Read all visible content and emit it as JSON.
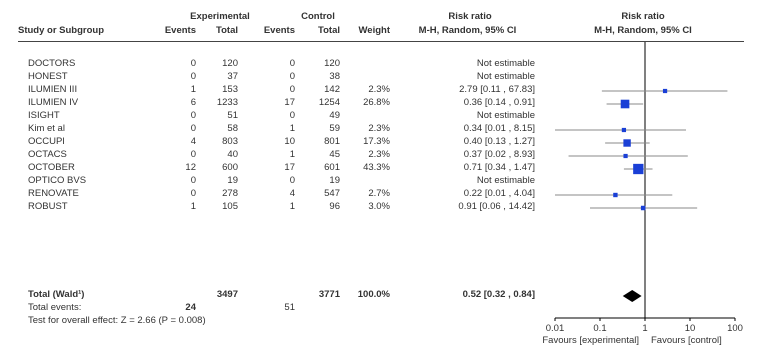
{
  "headers": {
    "study": "Study or Subgroup",
    "experimental": "Experimental",
    "control": "Control",
    "events": "Events",
    "total": "Total",
    "weight": "Weight",
    "risk_ratio": "Risk ratio",
    "method": "M-H, Random, 95% CI",
    "plot_title": "Risk ratio",
    "plot_method": "M-H, Random, 95% CI"
  },
  "studies": [
    {
      "name": "DOCTORS",
      "exp_events": "0",
      "exp_total": "120",
      "ctl_events": "0",
      "ctl_total": "120",
      "weight": "",
      "rr_text": "Not estimable"
    },
    {
      "name": "HONEST",
      "exp_events": "0",
      "exp_total": "37",
      "ctl_events": "0",
      "ctl_total": "38",
      "weight": "",
      "rr_text": "Not estimable"
    },
    {
      "name": "ILUMIEN III",
      "exp_events": "1",
      "exp_total": "153",
      "ctl_events": "0",
      "ctl_total": "142",
      "weight": "2.3%",
      "rr_text": "2.79 [0.11 , 67.83]"
    },
    {
      "name": "ILUMIEN IV",
      "exp_events": "6",
      "exp_total": "1233",
      "ctl_events": "17",
      "ctl_total": "1254",
      "weight": "26.8%",
      "rr_text": "0.36 [0.14 , 0.91]"
    },
    {
      "name": "ISIGHT",
      "exp_events": "0",
      "exp_total": "51",
      "ctl_events": "0",
      "ctl_total": "49",
      "weight": "",
      "rr_text": "Not estimable"
    },
    {
      "name": "Kim et al",
      "exp_events": "0",
      "exp_total": "58",
      "ctl_events": "1",
      "ctl_total": "59",
      "weight": "2.3%",
      "rr_text": "0.34 [0.01 , 8.15]"
    },
    {
      "name": "OCCUPI",
      "exp_events": "4",
      "exp_total": "803",
      "ctl_events": "10",
      "ctl_total": "801",
      "weight": "17.3%",
      "rr_text": "0.40 [0.13 , 1.27]"
    },
    {
      "name": "OCTACS",
      "exp_events": "0",
      "exp_total": "40",
      "ctl_events": "1",
      "ctl_total": "45",
      "weight": "2.3%",
      "rr_text": "0.37 [0.02 , 8.93]"
    },
    {
      "name": "OCTOBER",
      "exp_events": "12",
      "exp_total": "600",
      "ctl_events": "17",
      "ctl_total": "601",
      "weight": "43.3%",
      "rr_text": "0.71 [0.34 , 1.47]"
    },
    {
      "name": "OPTICO BVS",
      "exp_events": "0",
      "exp_total": "19",
      "ctl_events": "0",
      "ctl_total": "19",
      "weight": "",
      "rr_text": "Not estimable"
    },
    {
      "name": "RENOVATE",
      "exp_events": "0",
      "exp_total": "278",
      "ctl_events": "4",
      "ctl_total": "547",
      "weight": "2.7%",
      "rr_text": "0.22 [0.01 , 4.04]"
    },
    {
      "name": "ROBUST",
      "exp_events": "1",
      "exp_total": "105",
      "ctl_events": "1",
      "ctl_total": "96",
      "weight": "3.0%",
      "rr_text": "0.91 [0.06 , 14.42]"
    }
  ],
  "total_row": {
    "label": "Total (Wald¹)",
    "exp_total": "3497",
    "ctl_total": "3771",
    "weight": "100.0%",
    "rr_text": "0.52 [0.32 , 0.84]"
  },
  "total_events": {
    "label": "Total events:",
    "exp": "24",
    "ctl": "51"
  },
  "overall_test": "Test for overall effect: Z = 2.66 (P = 0.008)",
  "chart_data": {
    "type": "forest",
    "x_scale": "log",
    "xlim": [
      0.01,
      100
    ],
    "ticks": [
      0.01,
      0.1,
      1,
      10,
      100
    ],
    "tick_labels": [
      "0.01",
      "0.1",
      "1",
      "10",
      "100"
    ],
    "favours_left": "Favours [experimental]",
    "favours_right": "Favours [control]",
    "colors": {
      "marker": "#1a3fd6",
      "line": "#888888",
      "axis": "#000000",
      "diamond": "#000000"
    },
    "points": [
      {
        "study": "ILUMIEN III",
        "rr": 2.79,
        "lo": 0.11,
        "hi": 67.83,
        "weight": 2.3
      },
      {
        "study": "ILUMIEN IV",
        "rr": 0.36,
        "lo": 0.14,
        "hi": 0.91,
        "weight": 26.8
      },
      {
        "study": "Kim et al",
        "rr": 0.34,
        "lo": 0.01,
        "hi": 8.15,
        "weight": 2.3
      },
      {
        "study": "OCCUPI",
        "rr": 0.4,
        "lo": 0.13,
        "hi": 1.27,
        "weight": 17.3
      },
      {
        "study": "OCTACS",
        "rr": 0.37,
        "lo": 0.02,
        "hi": 8.93,
        "weight": 2.3
      },
      {
        "study": "OCTOBER",
        "rr": 0.71,
        "lo": 0.34,
        "hi": 1.47,
        "weight": 43.3
      },
      {
        "study": "RENOVATE",
        "rr": 0.22,
        "lo": 0.01,
        "hi": 4.04,
        "weight": 2.7
      },
      {
        "study": "ROBUST",
        "rr": 0.91,
        "lo": 0.06,
        "hi": 14.42,
        "weight": 3.0
      }
    ],
    "pooled": {
      "rr": 0.52,
      "lo": 0.32,
      "hi": 0.84
    }
  }
}
